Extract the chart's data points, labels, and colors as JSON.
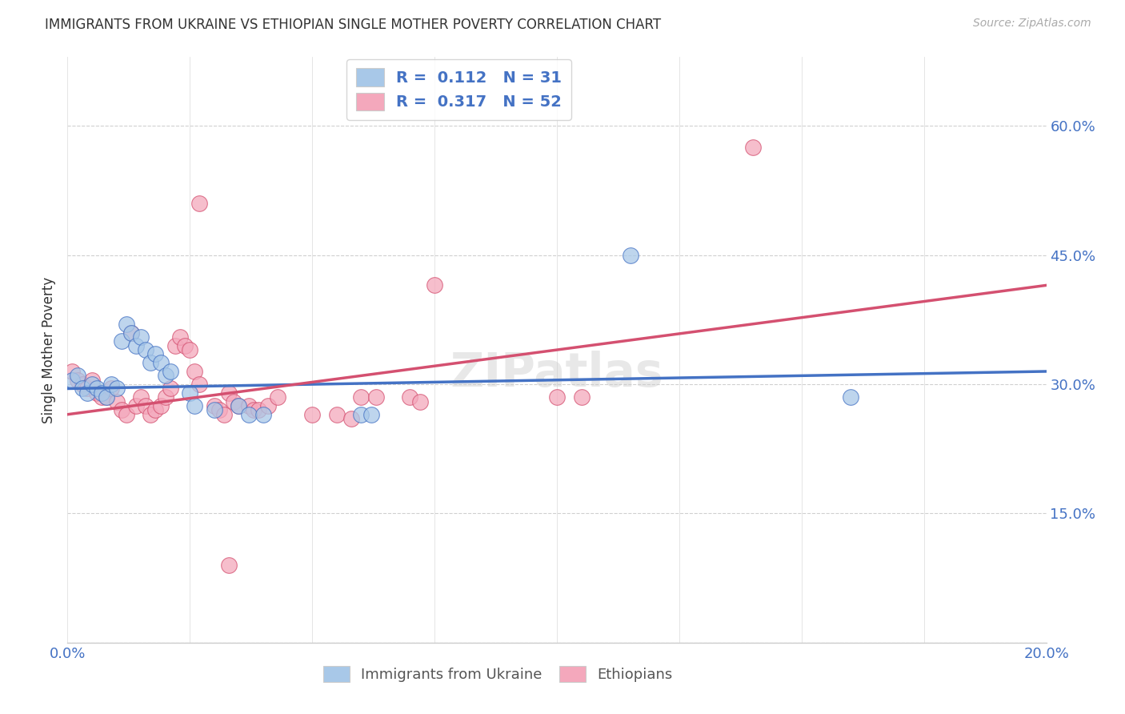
{
  "title": "IMMIGRANTS FROM UKRAINE VS ETHIOPIAN SINGLE MOTHER POVERTY CORRELATION CHART",
  "source": "Source: ZipAtlas.com",
  "ylabel": "Single Mother Poverty",
  "right_yticklabels": [
    "",
    "15.0%",
    "30.0%",
    "45.0%",
    "60.0%"
  ],
  "xmin": 0.0,
  "xmax": 0.2,
  "ymin": 0.0,
  "ymax": 0.68,
  "ukraine_color": "#a8c8e8",
  "ethiopia_color": "#f4a8bc",
  "ukraine_line_color": "#4472c4",
  "ethiopia_line_color": "#d45070",
  "ukraine_points": [
    [
      0.001,
      0.305
    ],
    [
      0.002,
      0.31
    ],
    [
      0.003,
      0.295
    ],
    [
      0.004,
      0.29
    ],
    [
      0.005,
      0.3
    ],
    [
      0.006,
      0.295
    ],
    [
      0.007,
      0.29
    ],
    [
      0.008,
      0.285
    ],
    [
      0.009,
      0.3
    ],
    [
      0.01,
      0.295
    ],
    [
      0.011,
      0.35
    ],
    [
      0.012,
      0.37
    ],
    [
      0.013,
      0.36
    ],
    [
      0.014,
      0.345
    ],
    [
      0.015,
      0.355
    ],
    [
      0.016,
      0.34
    ],
    [
      0.017,
      0.325
    ],
    [
      0.018,
      0.335
    ],
    [
      0.019,
      0.325
    ],
    [
      0.02,
      0.31
    ],
    [
      0.021,
      0.315
    ],
    [
      0.025,
      0.29
    ],
    [
      0.026,
      0.275
    ],
    [
      0.03,
      0.27
    ],
    [
      0.035,
      0.275
    ],
    [
      0.037,
      0.265
    ],
    [
      0.04,
      0.265
    ],
    [
      0.06,
      0.265
    ],
    [
      0.062,
      0.265
    ],
    [
      0.115,
      0.45
    ],
    [
      0.16,
      0.285
    ]
  ],
  "ethiopia_points": [
    [
      0.001,
      0.315
    ],
    [
      0.002,
      0.305
    ],
    [
      0.003,
      0.3
    ],
    [
      0.004,
      0.295
    ],
    [
      0.005,
      0.305
    ],
    [
      0.006,
      0.29
    ],
    [
      0.007,
      0.285
    ],
    [
      0.008,
      0.285
    ],
    [
      0.009,
      0.295
    ],
    [
      0.01,
      0.28
    ],
    [
      0.011,
      0.27
    ],
    [
      0.012,
      0.265
    ],
    [
      0.013,
      0.36
    ],
    [
      0.014,
      0.275
    ],
    [
      0.015,
      0.285
    ],
    [
      0.016,
      0.275
    ],
    [
      0.017,
      0.265
    ],
    [
      0.018,
      0.27
    ],
    [
      0.019,
      0.275
    ],
    [
      0.02,
      0.285
    ],
    [
      0.021,
      0.295
    ],
    [
      0.022,
      0.345
    ],
    [
      0.023,
      0.355
    ],
    [
      0.024,
      0.345
    ],
    [
      0.025,
      0.34
    ],
    [
      0.026,
      0.315
    ],
    [
      0.027,
      0.3
    ],
    [
      0.03,
      0.275
    ],
    [
      0.031,
      0.27
    ],
    [
      0.032,
      0.265
    ],
    [
      0.033,
      0.29
    ],
    [
      0.034,
      0.28
    ],
    [
      0.035,
      0.275
    ],
    [
      0.037,
      0.275
    ],
    [
      0.038,
      0.27
    ],
    [
      0.039,
      0.27
    ],
    [
      0.041,
      0.275
    ],
    [
      0.043,
      0.285
    ],
    [
      0.05,
      0.265
    ],
    [
      0.055,
      0.265
    ],
    [
      0.058,
      0.26
    ],
    [
      0.06,
      0.285
    ],
    [
      0.063,
      0.285
    ],
    [
      0.07,
      0.285
    ],
    [
      0.072,
      0.28
    ],
    [
      0.075,
      0.415
    ],
    [
      0.1,
      0.285
    ],
    [
      0.105,
      0.285
    ],
    [
      0.027,
      0.51
    ],
    [
      0.033,
      0.09
    ],
    [
      0.14,
      0.575
    ]
  ],
  "ukraine_trend_x": [
    0.0,
    0.2
  ],
  "ukraine_trend_y": [
    0.295,
    0.315
  ],
  "ethiopia_trend_x": [
    0.0,
    0.2
  ],
  "ethiopia_trend_y": [
    0.265,
    0.415
  ]
}
